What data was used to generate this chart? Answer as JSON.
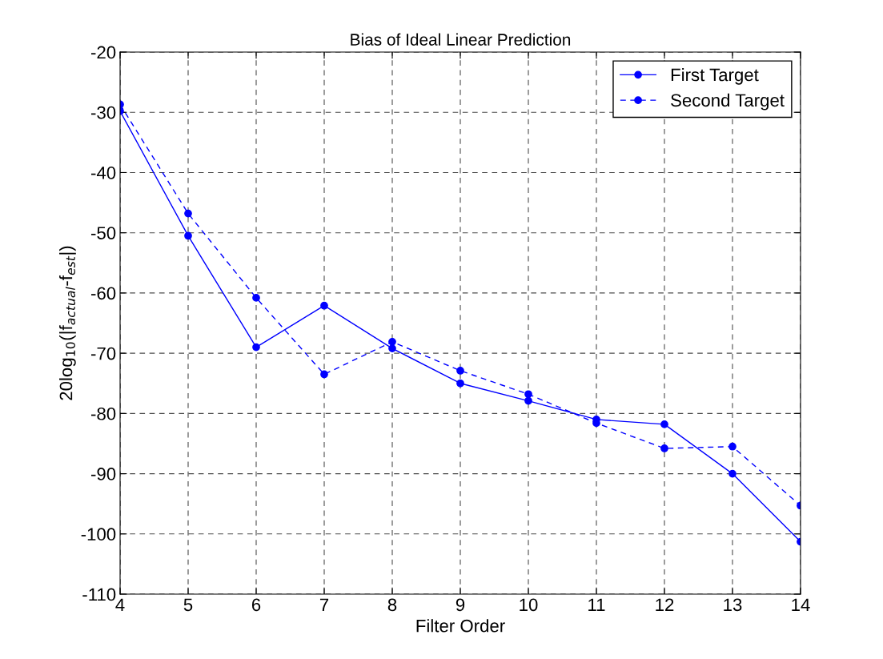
{
  "chart_data": {
    "type": "line",
    "title": "Bias of Ideal Linear Prediction",
    "xlabel": "Filter Order",
    "ylabel": "20log$_{10}$(|f$_{actual}$-f$_{est}$|)",
    "x": [
      4,
      5,
      6,
      7,
      8,
      9,
      10,
      11,
      12,
      13,
      14
    ],
    "series": [
      {
        "name": "First Target",
        "color": "#0000ff",
        "line_style": "solid",
        "values": [
          -29.8,
          -50.5,
          -69.0,
          -62.1,
          -69.2,
          -75.0,
          -77.9,
          -81.0,
          -81.8,
          -90.0,
          -101.3
        ]
      },
      {
        "name": "Second Target",
        "color": "#0000ff",
        "line_style": "dashed",
        "values": [
          -28.7,
          -46.8,
          -60.8,
          -73.5,
          -68.1,
          -72.9,
          -76.8,
          -81.6,
          -85.8,
          -85.5,
          -95.3
        ]
      }
    ],
    "marker": "circle",
    "xlim": [
      4,
      14
    ],
    "ylim": [
      -110,
      -20
    ],
    "xticks": [
      4,
      5,
      6,
      7,
      8,
      9,
      10,
      11,
      12,
      13,
      14
    ],
    "yticks": [
      -110,
      -100,
      -90,
      -80,
      -70,
      -60,
      -50,
      -40,
      -30,
      -20
    ],
    "grid": true,
    "legend": "top right"
  }
}
